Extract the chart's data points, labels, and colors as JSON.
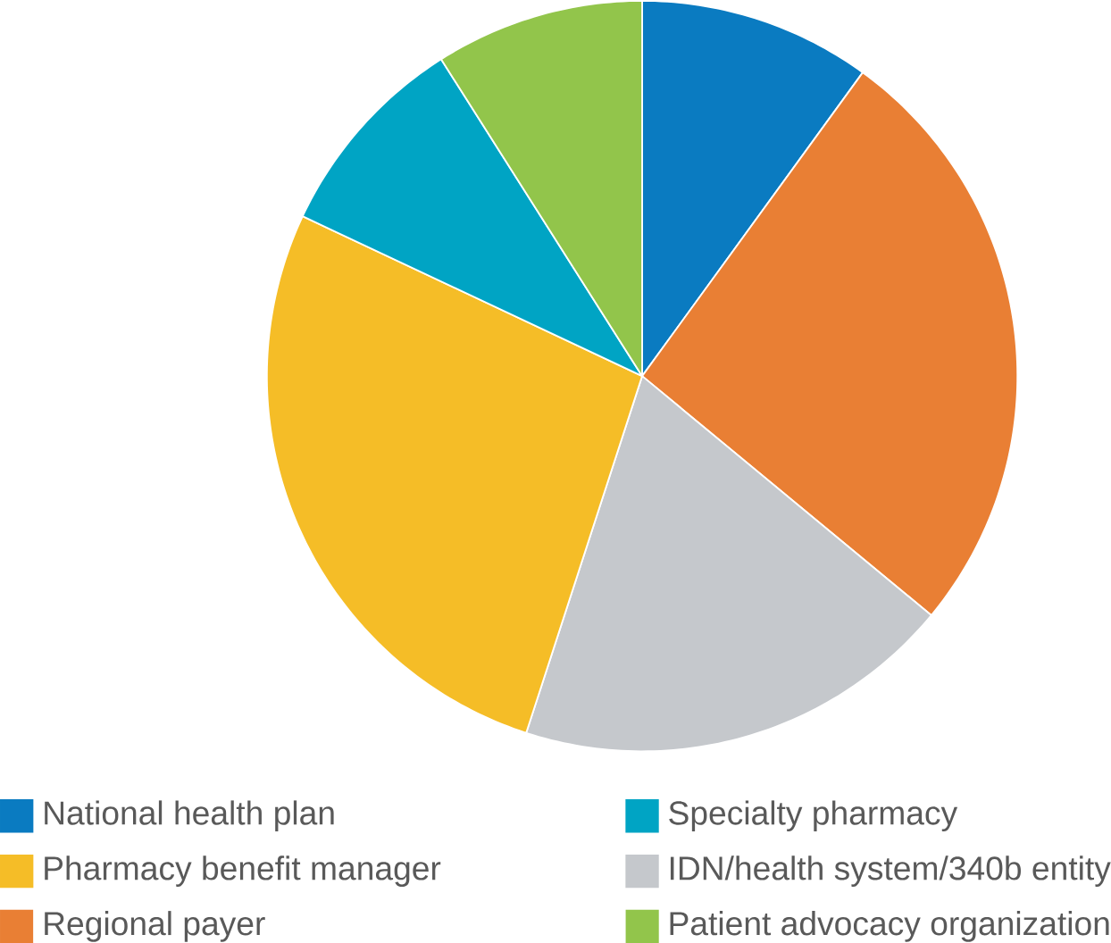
{
  "chart_data": {
    "type": "pie",
    "categories": [
      "National health plan",
      "Regional payer",
      "IDN/health system/340b entity",
      "Pharmacy benefit manager",
      "Specialty pharmacy",
      "Patient advocacy organization"
    ],
    "values": [
      10,
      26,
      19,
      27,
      9,
      9
    ],
    "colors": [
      "#0a7bc1",
      "#e97f34",
      "#c5c8cc",
      "#f5bd27",
      "#00a4c4",
      "#92c54b"
    ],
    "legend": "bottom"
  }
}
